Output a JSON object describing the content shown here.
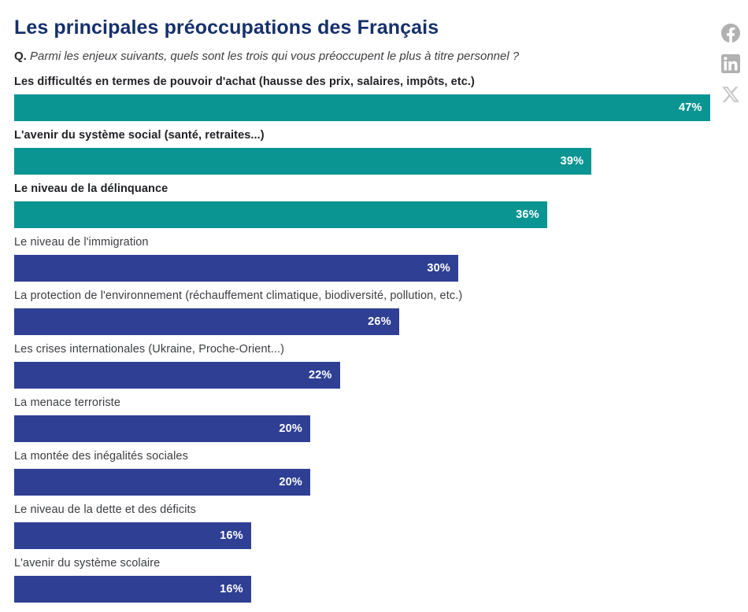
{
  "header": {
    "title": "Les principales préoccupations des Français",
    "question_prefix": "Q.",
    "question_text": "Parmi les enjeux suivants, quels sont les trois qui vous préoccupent le plus à titre personnel ?"
  },
  "share": {
    "facebook_label": "facebook-share",
    "linkedin_label": "linkedin-share",
    "x_label": "x-share"
  },
  "colors": {
    "teal": "#0a9492",
    "blue": "#2e3f94",
    "title_navy": "#16306c",
    "label_dark": "#212227",
    "label_gray": "#3b3d42",
    "value_text": "#ffffff",
    "icon_gray": "#b1b1b1",
    "icon_gray_light": "#c7c7c7",
    "background": "#ffffff"
  },
  "chart_data": {
    "type": "bar",
    "orientation": "horizontal",
    "title": "Les principales préoccupations des Français",
    "xlabel": "",
    "ylabel": "",
    "unit": "%",
    "xlim": [
      0,
      50
    ],
    "grid": false,
    "legend": false,
    "value_labels_inside_bars": true,
    "categories": [
      "Les difficultés en termes de pouvoir d'achat (hausse des prix, salaires, impôts, etc.)",
      "L'avenir du système social (santé, retraites...)",
      "Le niveau de la délinquance",
      "Le niveau de l'immigration",
      "La protection de l'environnement (réchauffement climatique, biodiversité, pollution, etc.)",
      "Les crises internationales (Ukraine, Proche-Orient...)",
      "La menace terroriste",
      "La montée des inégalités sociales",
      "Le niveau de la dette et des déficits",
      "L'avenir du système scolaire"
    ],
    "values": [
      47,
      39,
      36,
      30,
      26,
      22,
      20,
      20,
      16,
      16
    ],
    "rows": [
      {
        "label": "Les difficultés en termes de pouvoir d'achat (hausse des prix, salaires, impôts, etc.)",
        "value": 47,
        "display": "47%",
        "color": "teal",
        "emphasis": true
      },
      {
        "label": "L'avenir du système social (santé, retraites...)",
        "value": 39,
        "display": "39%",
        "color": "teal",
        "emphasis": true
      },
      {
        "label": "Le niveau de la délinquance",
        "value": 36,
        "display": "36%",
        "color": "teal",
        "emphasis": true
      },
      {
        "label": "Le niveau de l'immigration",
        "value": 30,
        "display": "30%",
        "color": "blue",
        "emphasis": false
      },
      {
        "label": "La protection de l'environnement (réchauffement climatique, biodiversité, pollution, etc.)",
        "value": 26,
        "display": "26%",
        "color": "blue",
        "emphasis": false
      },
      {
        "label": "Les crises internationales (Ukraine, Proche-Orient...)",
        "value": 22,
        "display": "22%",
        "color": "blue",
        "emphasis": false
      },
      {
        "label": "La menace terroriste",
        "value": 20,
        "display": "20%",
        "color": "blue",
        "emphasis": false
      },
      {
        "label": "La montée des inégalités sociales",
        "value": 20,
        "display": "20%",
        "color": "blue",
        "emphasis": false
      },
      {
        "label": "Le niveau de la dette et des déficits",
        "value": 16,
        "display": "16%",
        "color": "blue",
        "emphasis": false
      },
      {
        "label": "L'avenir du système scolaire",
        "value": 16,
        "display": "16%",
        "color": "blue",
        "emphasis": false
      }
    ]
  }
}
